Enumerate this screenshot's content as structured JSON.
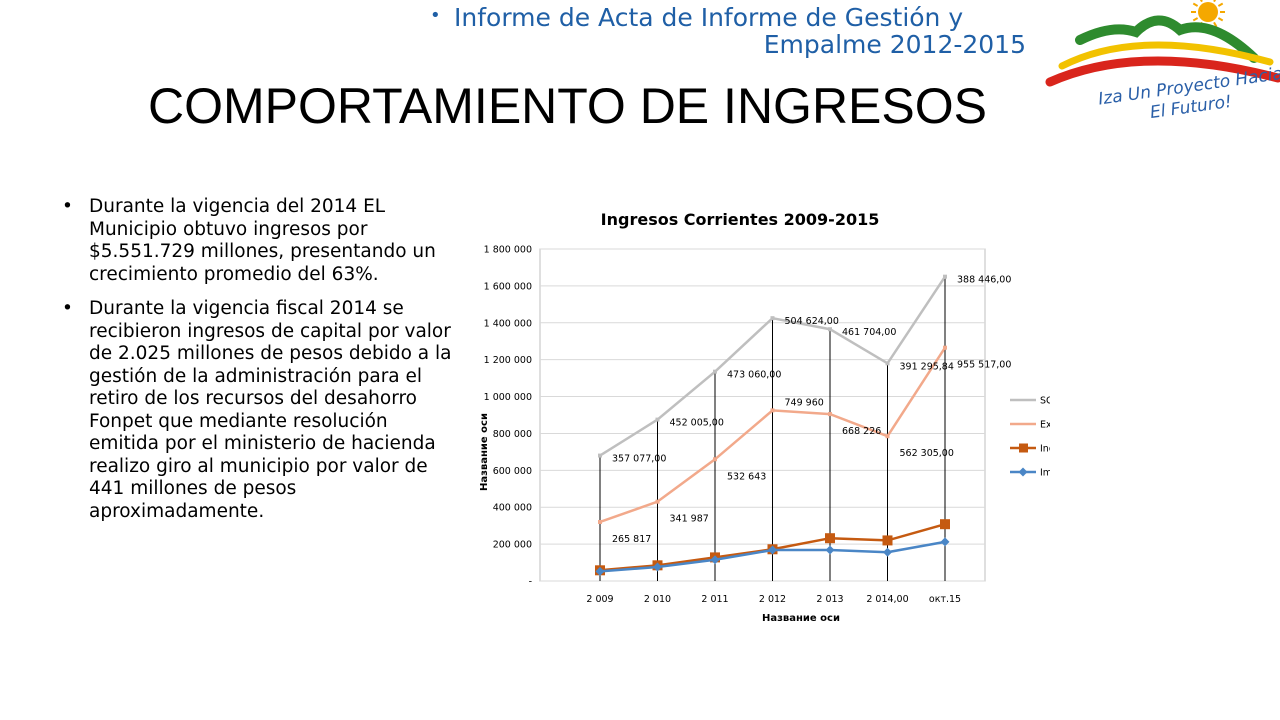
{
  "header": {
    "note_bullet": "•",
    "note_line1": "Informe de Acta de Informe de Gestión y",
    "note_line2": "Empalme 2012-2015",
    "title": "COMPORTAMIENTO DE INGRESOS"
  },
  "logo": {
    "text_line1": "Iza Un Proyecto Hacia",
    "text_line2": "El Futuro!",
    "colors": {
      "green": "#2e8b2e",
      "yellow": "#f2c200",
      "red": "#d9251c",
      "sun": "#f5a800",
      "text": "#2a5fa8"
    }
  },
  "bullets": [
    {
      "marker": "•",
      "text": "Durante la vigencia del 2014 EL Municipio obtuvo ingresos por $5.551.729 millones, presentando un crecimiento promedio del 63%."
    },
    {
      "marker": "•",
      "text": "Durante la vigencia fiscal 2014 se recibieron ingresos de capital por valor de 2.025 millones de pesos debido a la gestión de la administración para el retiro de los recursos del desahorro Fonpet que mediante resolución emitida por el ministerio de hacienda realizo giro al municipio por valor de 441 millones de pesos aproximadamente."
    }
  ],
  "chart_data": {
    "type": "line",
    "title": "Ingresos Corrientes 2009-2015",
    "xlabel": "Название оси",
    "ylabel": "Название оси",
    "categories": [
      "2 009",
      "2 010",
      "2 011",
      "2 012",
      "2 013",
      "2 014,00",
      "окт.15"
    ],
    "ylim": [
      0,
      1800000
    ],
    "y_ticks": [
      {
        "value": 0,
        "label": "-"
      },
      {
        "value": 200000,
        "label": "200 000"
      },
      {
        "value": 400000,
        "label": "400 000"
      },
      {
        "value": 600000,
        "label": "600 000"
      },
      {
        "value": 800000,
        "label": "800 000"
      },
      {
        "value": 1000000,
        "label": "1 000 000"
      },
      {
        "value": 1200000,
        "label": "1 200 000"
      },
      {
        "value": 1400000,
        "label": "1 400 000"
      },
      {
        "value": 1600000,
        "label": "1 600 000"
      },
      {
        "value": 1800000,
        "label": "1 800 000"
      }
    ],
    "grid": true,
    "drop_lines": true,
    "legend_position": "right",
    "series": [
      {
        "name": "SGP funcionamiento",
        "color": "#bfbfbf",
        "marker": "none",
        "values": [
          680000,
          875000,
          1135000,
          1425000,
          1365000,
          1180000,
          1650000
        ],
        "labels": [
          "357 077,00",
          "452 005,00",
          "473 060,00",
          "504 624,00",
          "461 704,00",
          "391 295,84",
          "388 446,00"
        ]
      },
      {
        "name": "Extracción de Materiales",
        "color": "#f2a98b",
        "marker": "none",
        "values": [
          320000,
          430000,
          660000,
          925000,
          905000,
          785000,
          1265000
        ],
        "labels": [
          "265 817",
          "341 987",
          "532 643",
          "749 960",
          "668 226",
          "562 305,00",
          "955 517,00"
        ]
      },
      {
        "name": "Industria y Comercio",
        "color": "#c55a11",
        "marker": "square",
        "values": [
          58000,
          85000,
          128000,
          172000,
          232000,
          220000,
          308000
        ],
        "labels": []
      },
      {
        "name": "Impuesto Predial unificado",
        "color": "#4a86c6",
        "marker": "diamond",
        "values": [
          52000,
          76000,
          115000,
          168000,
          168000,
          156000,
          212000
        ],
        "labels": []
      }
    ]
  }
}
